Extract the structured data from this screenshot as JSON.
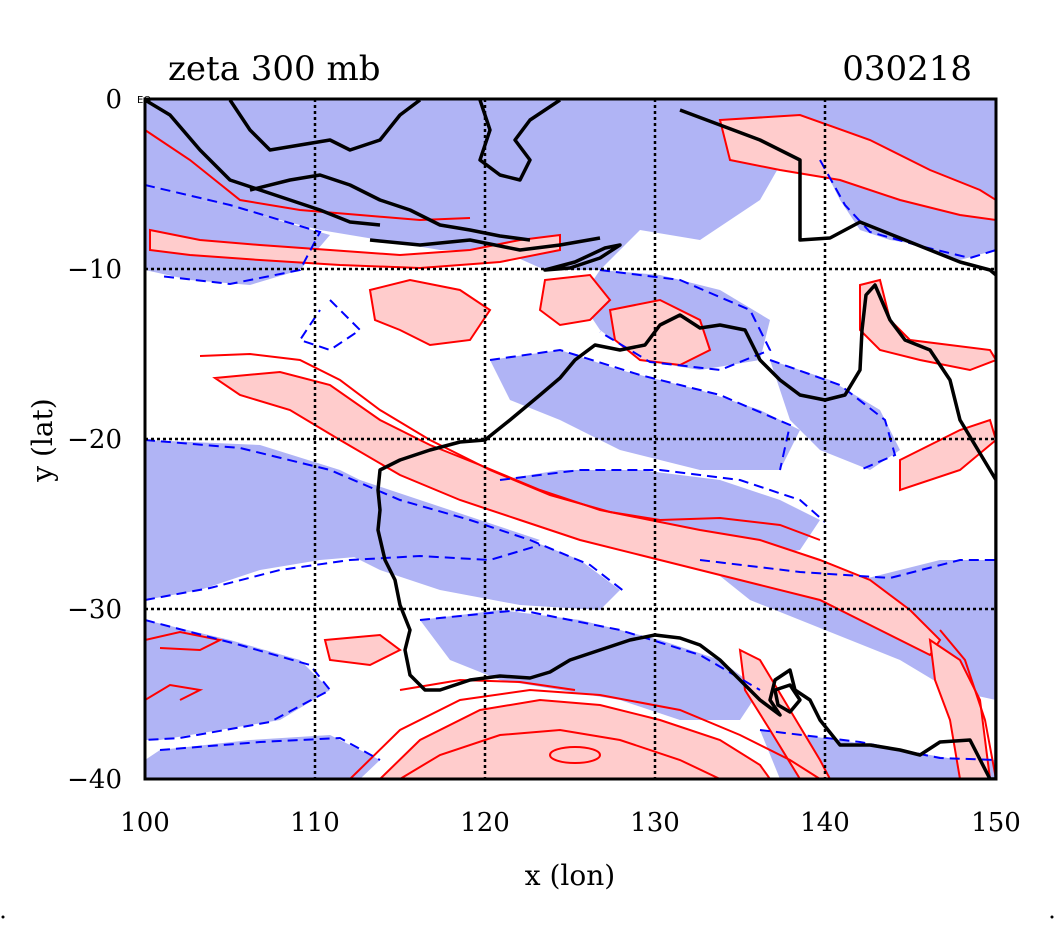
{
  "chart_data": {
    "type": "contour",
    "title": "zeta 300 mb",
    "date_label": "030218",
    "xlabel": "x (lon)",
    "ylabel": "y (lat)",
    "xlim": [
      100,
      150
    ],
    "ylim": [
      -40,
      0
    ],
    "x_ticks": [
      100,
      110,
      120,
      130,
      140,
      150
    ],
    "x_tick_labels": [
      "100",
      "110",
      "120",
      "130",
      "140",
      "150"
    ],
    "y_ticks": [
      0,
      -10,
      -20,
      -30,
      -40
    ],
    "y_tick_labels": [
      "0",
      "−10",
      "−20",
      "−30",
      "−40"
    ],
    "corner_label": "EQ",
    "grid": true,
    "gridlines_lon": [
      110,
      120,
      130,
      140
    ],
    "gridlines_lat": [
      -10,
      -20,
      -30
    ],
    "contour_legend": [
      {
        "sign": "positive",
        "line": "solid",
        "color": "#ff0000",
        "fill": "#ffcccc"
      },
      {
        "sign": "negative",
        "line": "dashed",
        "color": "#0000ff",
        "fill": "#b0b4f5"
      }
    ],
    "coastline_color": "#000000"
  }
}
